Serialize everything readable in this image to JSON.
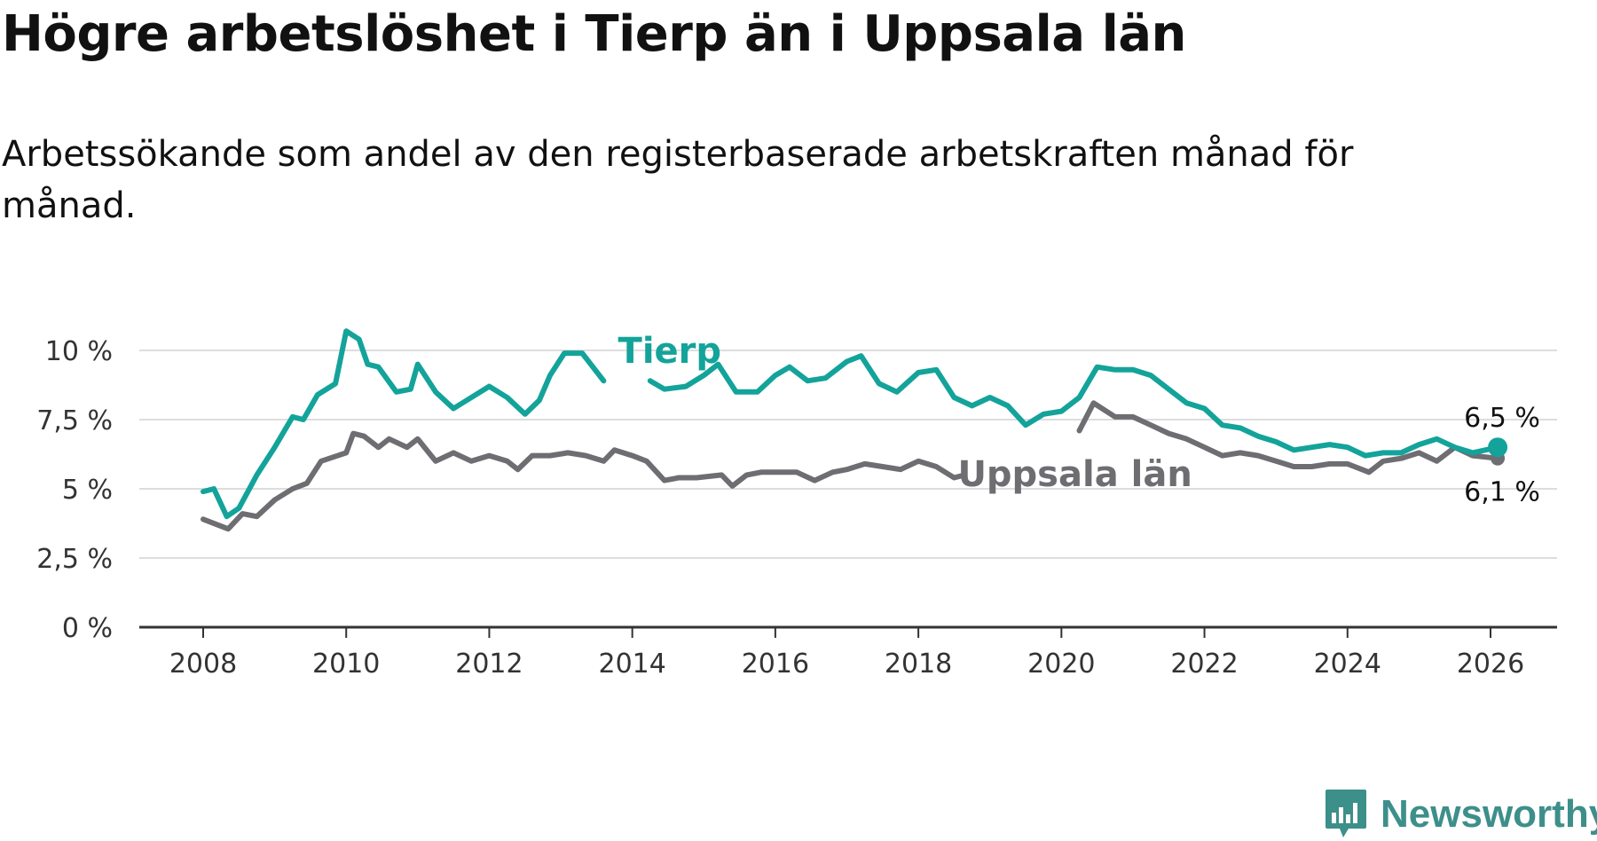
{
  "title": "Högre arbetslöshet i Tierp än i Uppsala län",
  "subtitle": "Arbetssökande som andel av den registerbaserade arbetskraften månad för månad.",
  "brand": "Newsworthy",
  "colors": {
    "tierp": "#13a39a",
    "uppsala": "#6e6d72",
    "grid": "#dddddd",
    "axis": "#333333",
    "brand": "#3d8f8a"
  },
  "chart_data": {
    "type": "line",
    "title": "Högre arbetslöshet i Tierp än i Uppsala län",
    "subtitle": "Arbetssökande som andel av den registerbaserade arbetskraften månad för månad.",
    "xlabel": "",
    "ylabel": "",
    "xlim": [
      2007.1,
      2027.0
    ],
    "ylim": [
      0,
      10
    ],
    "x_ticks": [
      2008,
      2010,
      2012,
      2014,
      2016,
      2018,
      2020,
      2022,
      2024,
      2026
    ],
    "x_tick_labels": [
      "2008",
      "2010",
      "2012",
      "2014",
      "2016",
      "2018",
      "2020",
      "2022",
      "2024",
      "2026"
    ],
    "y_ticks": [
      0,
      2.5,
      5,
      7.5,
      10
    ],
    "y_tick_labels": [
      "0 %",
      "2,5 %",
      "5 %",
      "7,5 %",
      "10 %"
    ],
    "grid": true,
    "series": [
      {
        "name": "Tierp",
        "label": "Tierp",
        "end_label": "6,5 %",
        "points": [
          [
            2008.0,
            4.9
          ],
          [
            2008.15,
            5.0
          ],
          [
            2008.33,
            4.0
          ],
          [
            2008.5,
            4.3
          ],
          [
            2008.75,
            5.5
          ],
          [
            2009.0,
            6.5
          ],
          [
            2009.25,
            7.6
          ],
          [
            2009.4,
            7.5
          ],
          [
            2009.6,
            8.4
          ],
          [
            2009.85,
            8.8
          ],
          [
            2010.0,
            10.7
          ],
          [
            2010.18,
            10.4
          ],
          [
            2010.3,
            9.5
          ],
          [
            2010.45,
            9.4
          ],
          [
            2010.7,
            8.5
          ],
          [
            2010.9,
            8.6
          ],
          [
            2011.0,
            9.5
          ],
          [
            2011.25,
            8.5
          ],
          [
            2011.5,
            7.9
          ],
          [
            2011.75,
            8.3
          ],
          [
            2012.0,
            8.7
          ],
          [
            2012.25,
            8.3
          ],
          [
            2012.5,
            7.7
          ],
          [
            2012.7,
            8.2
          ],
          [
            2012.85,
            9.1
          ],
          [
            2013.05,
            9.9
          ],
          [
            2013.3,
            9.9
          ],
          [
            2013.6,
            8.9
          ],
          [
            2014.25,
            8.9
          ],
          [
            2014.45,
            8.6
          ],
          [
            2014.75,
            8.7
          ],
          [
            2015.0,
            9.1
          ],
          [
            2015.2,
            9.5
          ],
          [
            2015.45,
            8.5
          ],
          [
            2015.75,
            8.5
          ],
          [
            2016.0,
            9.1
          ],
          [
            2016.2,
            9.4
          ],
          [
            2016.45,
            8.9
          ],
          [
            2016.7,
            9.0
          ],
          [
            2017.0,
            9.6
          ],
          [
            2017.2,
            9.8
          ],
          [
            2017.45,
            8.8
          ],
          [
            2017.7,
            8.5
          ],
          [
            2018.0,
            9.2
          ],
          [
            2018.25,
            9.3
          ],
          [
            2018.5,
            8.3
          ],
          [
            2018.75,
            8.0
          ],
          [
            2019.0,
            8.3
          ],
          [
            2019.25,
            8.0
          ],
          [
            2019.5,
            7.3
          ],
          [
            2019.75,
            7.7
          ],
          [
            2020.0,
            7.8
          ],
          [
            2020.25,
            8.3
          ],
          [
            2020.5,
            9.4
          ],
          [
            2020.75,
            9.3
          ],
          [
            2021.0,
            9.3
          ],
          [
            2021.25,
            9.1
          ],
          [
            2021.5,
            8.6
          ],
          [
            2021.75,
            8.1
          ],
          [
            2022.0,
            7.9
          ],
          [
            2022.25,
            7.3
          ],
          [
            2022.5,
            7.2
          ],
          [
            2022.75,
            6.9
          ],
          [
            2023.0,
            6.7
          ],
          [
            2023.25,
            6.4
          ],
          [
            2023.5,
            6.5
          ],
          [
            2023.75,
            6.6
          ],
          [
            2024.0,
            6.5
          ],
          [
            2024.25,
            6.2
          ],
          [
            2024.5,
            6.3
          ],
          [
            2024.75,
            6.3
          ],
          [
            2025.0,
            6.6
          ],
          [
            2025.25,
            6.8
          ],
          [
            2025.5,
            6.5
          ],
          [
            2025.75,
            6.3
          ],
          [
            2026.1,
            6.5
          ]
        ]
      },
      {
        "name": "Uppsala län",
        "label": "Uppsala län",
        "end_label": "6,1 %",
        "points": [
          [
            2008.0,
            3.9
          ],
          [
            2008.2,
            3.7
          ],
          [
            2008.35,
            3.55
          ],
          [
            2008.55,
            4.1
          ],
          [
            2008.75,
            4.0
          ],
          [
            2009.0,
            4.6
          ],
          [
            2009.25,
            5.0
          ],
          [
            2009.45,
            5.2
          ],
          [
            2009.65,
            6.0
          ],
          [
            2010.0,
            6.3
          ],
          [
            2010.1,
            7.0
          ],
          [
            2010.25,
            6.9
          ],
          [
            2010.45,
            6.5
          ],
          [
            2010.6,
            6.8
          ],
          [
            2010.85,
            6.5
          ],
          [
            2011.0,
            6.8
          ],
          [
            2011.25,
            6.0
          ],
          [
            2011.5,
            6.3
          ],
          [
            2011.75,
            6.0
          ],
          [
            2012.0,
            6.2
          ],
          [
            2012.25,
            6.0
          ],
          [
            2012.4,
            5.7
          ],
          [
            2012.6,
            6.2
          ],
          [
            2012.85,
            6.2
          ],
          [
            2013.1,
            6.3
          ],
          [
            2013.35,
            6.2
          ],
          [
            2013.6,
            6.0
          ],
          [
            2013.75,
            6.4
          ],
          [
            2014.0,
            6.2
          ],
          [
            2014.2,
            6.0
          ],
          [
            2014.45,
            5.3
          ],
          [
            2014.65,
            5.4
          ],
          [
            2014.9,
            5.4
          ],
          [
            2015.25,
            5.5
          ],
          [
            2015.4,
            5.1
          ],
          [
            2015.6,
            5.5
          ],
          [
            2015.8,
            5.6
          ],
          [
            2016.0,
            5.6
          ],
          [
            2016.3,
            5.6
          ],
          [
            2016.55,
            5.3
          ],
          [
            2016.8,
            5.6
          ],
          [
            2017.0,
            5.7
          ],
          [
            2017.25,
            5.9
          ],
          [
            2017.5,
            5.8
          ],
          [
            2017.75,
            5.7
          ],
          [
            2018.0,
            6.0
          ],
          [
            2018.25,
            5.8
          ],
          [
            2018.5,
            5.4
          ],
          [
            2018.65,
            5.5
          ],
          [
            2020.25,
            7.1
          ],
          [
            2020.45,
            8.1
          ],
          [
            2020.75,
            7.6
          ],
          [
            2021.0,
            7.6
          ],
          [
            2021.25,
            7.3
          ],
          [
            2021.5,
            7.0
          ],
          [
            2021.75,
            6.8
          ],
          [
            2022.0,
            6.5
          ],
          [
            2022.25,
            6.2
          ],
          [
            2022.5,
            6.3
          ],
          [
            2022.75,
            6.2
          ],
          [
            2023.0,
            6.0
          ],
          [
            2023.25,
            5.8
          ],
          [
            2023.5,
            5.8
          ],
          [
            2023.75,
            5.9
          ],
          [
            2024.0,
            5.9
          ],
          [
            2024.3,
            5.6
          ],
          [
            2024.5,
            6.0
          ],
          [
            2024.75,
            6.1
          ],
          [
            2025.0,
            6.3
          ],
          [
            2025.25,
            6.0
          ],
          [
            2025.5,
            6.5
          ],
          [
            2025.75,
            6.2
          ],
          [
            2026.1,
            6.1
          ]
        ]
      }
    ]
  }
}
